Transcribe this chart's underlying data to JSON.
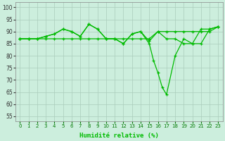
{
  "xlabel": "Humidité relative (%)",
  "bg_color": "#cceedd",
  "grid_color": "#aaccbb",
  "line_color": "#00bb00",
  "xlim": [
    -0.5,
    23.5
  ],
  "ylim": [
    53,
    102
  ],
  "yticks": [
    55,
    60,
    65,
    70,
    75,
    80,
    85,
    90,
    95,
    100
  ],
  "xticks": [
    0,
    1,
    2,
    3,
    4,
    5,
    6,
    7,
    8,
    9,
    10,
    11,
    12,
    13,
    14,
    15,
    16,
    17,
    18,
    19,
    20,
    21,
    22,
    23
  ],
  "line_flat_x": [
    0,
    1,
    2,
    3,
    4,
    5,
    6,
    7,
    8,
    9,
    10,
    11,
    12,
    13,
    14,
    15,
    16,
    17,
    18,
    19,
    20,
    21,
    22,
    23
  ],
  "line_flat_y": [
    87,
    87,
    87,
    87,
    87,
    87,
    87,
    87,
    87,
    87,
    87,
    87,
    87,
    87,
    87,
    87,
    90,
    90,
    90,
    90,
    90,
    90,
    90,
    92
  ],
  "line_upper_x": [
    0,
    1,
    2,
    3,
    4,
    5,
    6,
    7,
    8,
    9,
    10,
    11,
    12,
    13,
    14,
    15,
    16,
    17,
    18,
    19,
    20,
    21,
    22,
    23
  ],
  "line_upper_y": [
    87,
    87,
    87,
    88,
    89,
    91,
    90,
    88,
    93,
    91,
    87,
    87,
    85,
    89,
    90,
    86,
    90,
    87,
    87,
    85,
    85,
    91,
    91,
    92
  ],
  "line_dip_x": [
    0,
    1,
    2,
    3,
    4,
    5,
    6,
    7,
    8,
    9,
    10,
    11,
    12,
    13,
    14,
    15,
    15.5,
    16,
    16.5,
    17,
    18,
    19,
    20,
    21,
    22,
    23
  ],
  "line_dip_y": [
    87,
    87,
    87,
    88,
    89,
    91,
    90,
    88,
    93,
    91,
    87,
    87,
    85,
    89,
    90,
    85,
    78,
    73,
    67,
    64,
    80,
    87,
    85,
    85,
    91,
    92
  ]
}
